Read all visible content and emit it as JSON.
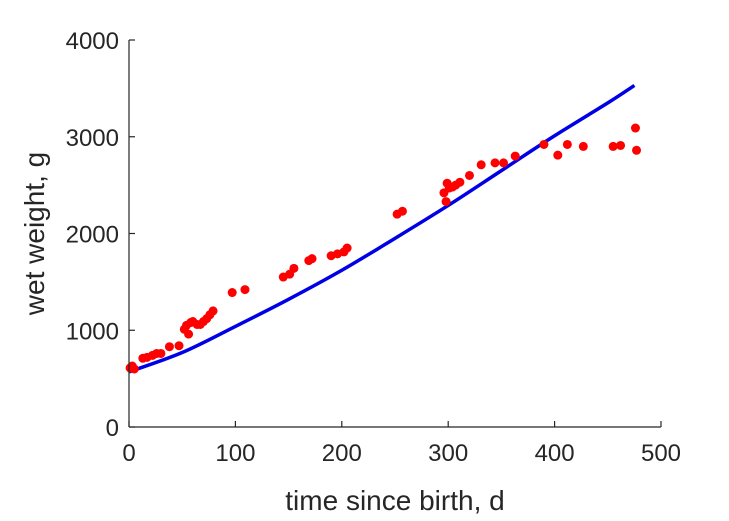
{
  "chart_data": {
    "type": "scatter",
    "xlabel": "time since birth, d",
    "ylabel": "wet weight, g",
    "xlim": [
      0,
      500
    ],
    "ylim": [
      0,
      4000
    ],
    "xticks": [
      0,
      100,
      200,
      300,
      400,
      500
    ],
    "yticks": [
      0,
      1000,
      2000,
      3000,
      4000
    ],
    "grid": false,
    "colors": {
      "points": "#ff0000",
      "fit": "#0000e6",
      "axis": "#262626"
    },
    "series": [
      {
        "kind": "points",
        "color": "#ff0000",
        "x": [
          1,
          3,
          5,
          13,
          17,
          22,
          26,
          30,
          38,
          47,
          52,
          54,
          56,
          58,
          60,
          64,
          67,
          70,
          73,
          76,
          79,
          97,
          109,
          145,
          151,
          155,
          169,
          172,
          190,
          196,
          202,
          205,
          252,
          257,
          296,
          298,
          299,
          301,
          304,
          307,
          311,
          320,
          331,
          344,
          352,
          363,
          390,
          403,
          412,
          427,
          455,
          462,
          476,
          477
        ],
        "y": [
          610,
          630,
          600,
          710,
          720,
          740,
          760,
          760,
          830,
          840,
          1010,
          1050,
          960,
          1080,
          1090,
          1060,
          1060,
          1090,
          1120,
          1160,
          1200,
          1390,
          1420,
          1550,
          1580,
          1640,
          1720,
          1740,
          1770,
          1790,
          1810,
          1850,
          2200,
          2230,
          2420,
          2330,
          2520,
          2470,
          2480,
          2500,
          2530,
          2600,
          2710,
          2730,
          2730,
          2800,
          2920,
          2810,
          2920,
          2900,
          2900,
          2910,
          3090,
          2860
        ]
      },
      {
        "kind": "line",
        "color": "#0000e6",
        "x": [
          0,
          50,
          100,
          150,
          200,
          250,
          300,
          350,
          400,
          450,
          475
        ],
        "y": [
          570,
          770,
          1040,
          1320,
          1620,
          1950,
          2290,
          2650,
          3010,
          3350,
          3530
        ]
      }
    ]
  }
}
